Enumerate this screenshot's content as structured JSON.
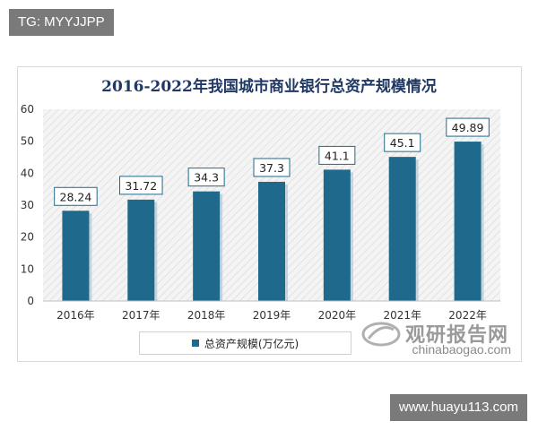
{
  "tag_label": "TG: MYYJJPP",
  "footer_url": "www.huayu113.com",
  "watermark": {
    "brand": "观研报告网",
    "url": "chinabaogao.com"
  },
  "colors": {
    "bar": "#1f6a8c",
    "bar_shadow": "#9ab8c8",
    "label_border": "#1f6a8c",
    "title": "#1f3864"
  },
  "chart_data": {
    "type": "bar",
    "title": "2016-2022年我国城市商业银行总资产规模情况",
    "categories": [
      "2016年",
      "2017年",
      "2018年",
      "2019年",
      "2020年",
      "2021年",
      "2022年"
    ],
    "series": [
      {
        "name": "总资产规模(万亿元)",
        "values": [
          28.24,
          31.72,
          34.3,
          37.3,
          41.1,
          45.1,
          49.89
        ]
      }
    ],
    "value_labels": [
      "28.24",
      "31.72",
      "34.3",
      "37.3",
      "41.1",
      "45.1",
      "49.89"
    ],
    "ylim": [
      0,
      60
    ],
    "yticks": [
      0,
      10,
      20,
      30,
      40,
      50,
      60
    ],
    "grid": false,
    "legend_position": "bottom"
  }
}
